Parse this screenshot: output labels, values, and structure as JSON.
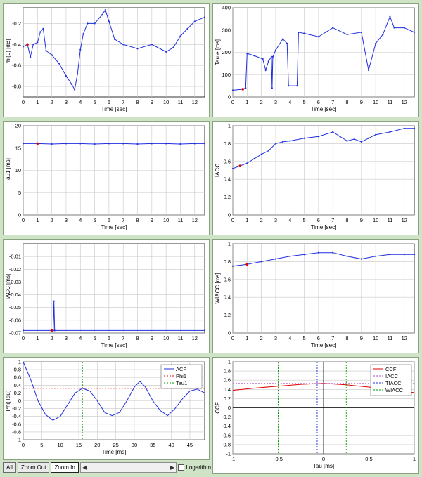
{
  "charts": [
    {
      "name": "phi0-panel",
      "chart_data": {
        "type": "line",
        "xlabel": "Time [sec]",
        "ylabel": "Phi(0) [dB]",
        "xlim": [
          0,
          12.7
        ],
        "ylim": [
          -0.9,
          -0.05
        ],
        "xticks": [
          0,
          1,
          2,
          3,
          4,
          5,
          6,
          7,
          8,
          9,
          10,
          11,
          12
        ],
        "yticks": [
          -0.8,
          -0.6,
          -0.4,
          -0.2
        ],
        "series": [
          {
            "values": [
              [
                0,
                -0.42
              ],
              [
                0.3,
                -0.4
              ],
              [
                0.5,
                -0.52
              ],
              [
                0.7,
                -0.4
              ],
              [
                1.0,
                -0.38
              ],
              [
                1.2,
                -0.28
              ],
              [
                1.4,
                -0.25
              ],
              [
                1.6,
                -0.46
              ],
              [
                2.0,
                -0.5
              ],
              [
                2.5,
                -0.58
              ],
              [
                3.0,
                -0.7
              ],
              [
                3.4,
                -0.78
              ],
              [
                3.6,
                -0.83
              ],
              [
                3.8,
                -0.68
              ],
              [
                4.0,
                -0.45
              ],
              [
                4.2,
                -0.3
              ],
              [
                4.5,
                -0.2
              ],
              [
                5.0,
                -0.2
              ],
              [
                5.5,
                -0.12
              ],
              [
                5.75,
                -0.07
              ],
              [
                6.0,
                -0.18
              ],
              [
                6.4,
                -0.35
              ],
              [
                7.0,
                -0.4
              ],
              [
                8.0,
                -0.44
              ],
              [
                9.0,
                -0.4
              ],
              [
                10.0,
                -0.47
              ],
              [
                10.5,
                -0.43
              ],
              [
                11.0,
                -0.32
              ],
              [
                11.5,
                -0.25
              ],
              [
                12.0,
                -0.18
              ],
              [
                12.7,
                -0.14
              ]
            ]
          }
        ]
      }
    },
    {
      "name": "taue-panel",
      "chart_data": {
        "type": "line",
        "xlabel": "Time [sec]",
        "ylabel": "Tau e [ms]",
        "xlim": [
          0,
          12.7
        ],
        "ylim": [
          0,
          400
        ],
        "xticks": [
          0,
          1,
          2,
          3,
          4,
          5,
          6,
          7,
          8,
          9,
          10,
          11,
          12
        ],
        "yticks": [
          0,
          100,
          200,
          300,
          400
        ],
        "series": [
          {
            "values": [
              [
                0,
                30
              ],
              [
                0.7,
                35
              ],
              [
                0.9,
                40
              ],
              [
                1.0,
                195
              ],
              [
                1.5,
                185
              ],
              [
                2.1,
                170
              ],
              [
                2.3,
                120
              ],
              [
                2.5,
                160
              ],
              [
                2.7,
                180
              ],
              [
                2.75,
                40
              ],
              [
                2.8,
                180
              ],
              [
                3.0,
                210
              ],
              [
                3.5,
                260
              ],
              [
                3.8,
                240
              ],
              [
                3.9,
                50
              ],
              [
                4.5,
                50
              ],
              [
                4.6,
                290
              ],
              [
                5.0,
                285
              ],
              [
                6.0,
                270
              ],
              [
                7.0,
                310
              ],
              [
                8.0,
                280
              ],
              [
                9.0,
                290
              ],
              [
                9.5,
                120
              ],
              [
                10.0,
                240
              ],
              [
                10.5,
                280
              ],
              [
                11.0,
                360
              ],
              [
                11.3,
                310
              ],
              [
                12.0,
                310
              ],
              [
                12.7,
                290
              ]
            ]
          }
        ]
      }
    },
    {
      "name": "tau1-panel",
      "chart_data": {
        "type": "line",
        "xlabel": "Time [sec]",
        "ylabel": "Tau1 [ms]",
        "xlim": [
          0,
          12.7
        ],
        "ylim": [
          0,
          20
        ],
        "xticks": [
          0,
          1,
          2,
          3,
          4,
          5,
          6,
          7,
          8,
          9,
          10,
          11,
          12
        ],
        "yticks": [
          0,
          5,
          10,
          15,
          20
        ],
        "series": [
          {
            "values": [
              [
                0,
                16
              ],
              [
                1.0,
                16
              ],
              [
                2.0,
                15.9
              ],
              [
                3.0,
                16
              ],
              [
                4.0,
                16
              ],
              [
                5.0,
                15.9
              ],
              [
                6.0,
                16
              ],
              [
                7.0,
                16
              ],
              [
                8.0,
                15.9
              ],
              [
                9.0,
                16
              ],
              [
                10.0,
                16
              ],
              [
                11.0,
                15.9
              ],
              [
                12.0,
                16
              ],
              [
                12.7,
                16
              ]
            ]
          }
        ]
      }
    },
    {
      "name": "iacc-panel",
      "chart_data": {
        "type": "line",
        "xlabel": "Time [sec]",
        "ylabel": "IACC",
        "xlim": [
          0,
          12.7
        ],
        "ylim": [
          0,
          1
        ],
        "xticks": [
          0,
          1,
          2,
          3,
          4,
          5,
          6,
          7,
          8,
          9,
          10,
          11,
          12
        ],
        "yticks": [
          0,
          0.2,
          0.4,
          0.6,
          0.8,
          1.0
        ],
        "series": [
          {
            "values": [
              [
                0,
                0.52
              ],
              [
                0.5,
                0.55
              ],
              [
                1.0,
                0.58
              ],
              [
                1.5,
                0.63
              ],
              [
                2.0,
                0.68
              ],
              [
                2.5,
                0.72
              ],
              [
                3.0,
                0.8
              ],
              [
                3.5,
                0.82
              ],
              [
                4.0,
                0.83
              ],
              [
                5.0,
                0.86
              ],
              [
                6.0,
                0.88
              ],
              [
                7.0,
                0.93
              ],
              [
                7.5,
                0.88
              ],
              [
                8.0,
                0.83
              ],
              [
                8.5,
                0.85
              ],
              [
                9.0,
                0.82
              ],
              [
                9.5,
                0.86
              ],
              [
                10.0,
                0.9
              ],
              [
                11.0,
                0.93
              ],
              [
                12.0,
                0.97
              ],
              [
                12.7,
                0.97
              ]
            ]
          }
        ]
      }
    },
    {
      "name": "tiacc-panel",
      "chart_data": {
        "type": "line",
        "xlabel": "Time [sec]",
        "ylabel": "TIACC [ms]",
        "xlim": [
          0,
          12.7
        ],
        "ylim": [
          -0.07,
          0
        ],
        "xticks": [
          0,
          1,
          2,
          3,
          4,
          5,
          6,
          7,
          8,
          9,
          10,
          11,
          12
        ],
        "yticks": [
          -0.07,
          -0.06,
          -0.05,
          -0.04,
          -0.03,
          -0.02,
          -0.01
        ],
        "series": [
          {
            "values": [
              [
                0,
                -0.068
              ],
              [
                2.0,
                -0.068
              ],
              [
                2.1,
                -0.068
              ],
              [
                2.15,
                -0.045
              ],
              [
                2.2,
                -0.068
              ],
              [
                12.7,
                -0.068
              ]
            ]
          }
        ]
      }
    },
    {
      "name": "wiacc-panel",
      "chart_data": {
        "type": "line",
        "xlabel": "Time [sec]",
        "ylabel": "WIACC [ms]",
        "xlim": [
          0,
          12.7
        ],
        "ylim": [
          0,
          1
        ],
        "xticks": [
          0,
          1,
          2,
          3,
          4,
          5,
          6,
          7,
          8,
          9,
          10,
          11,
          12
        ],
        "yticks": [
          0,
          0.2,
          0.4,
          0.6,
          0.8,
          1.0
        ],
        "series": [
          {
            "values": [
              [
                0,
                0.75
              ],
              [
                1.0,
                0.77
              ],
              [
                2.0,
                0.8
              ],
              [
                3.0,
                0.83
              ],
              [
                4.0,
                0.86
              ],
              [
                5.0,
                0.88
              ],
              [
                6.0,
                0.9
              ],
              [
                7.0,
                0.9
              ],
              [
                8.0,
                0.86
              ],
              [
                9.0,
                0.83
              ],
              [
                10.0,
                0.86
              ],
              [
                11.0,
                0.88
              ],
              [
                12.0,
                0.88
              ],
              [
                12.7,
                0.88
              ]
            ]
          }
        ]
      }
    },
    {
      "name": "acf-panel",
      "chart_data": {
        "type": "line",
        "xlabel": "Time [ms]",
        "ylabel": "Phi(Tau)",
        "xlim": [
          0,
          49
        ],
        "ylim": [
          -1,
          1
        ],
        "xticks": [
          0,
          5,
          10,
          15,
          20,
          25,
          30,
          35,
          40,
          45
        ],
        "yticks": [
          -1,
          -0.8,
          -0.6,
          -0.4,
          -0.2,
          0,
          0.2,
          0.4,
          0.6,
          0.8,
          1
        ],
        "legend": [
          "ACF",
          "Phi1",
          "Tau1"
        ],
        "series": [
          {
            "name": "ACF",
            "values": [
              [
                0,
                1
              ],
              [
                2,
                0.55
              ],
              [
                4,
                0
              ],
              [
                6,
                -0.35
              ],
              [
                8,
                -0.5
              ],
              [
                10,
                -0.4
              ],
              [
                12,
                -0.1
              ],
              [
                14,
                0.2
              ],
              [
                16,
                0.32
              ],
              [
                18,
                0.25
              ],
              [
                20,
                0
              ],
              [
                22,
                -0.3
              ],
              [
                24,
                -0.38
              ],
              [
                26,
                -0.3
              ],
              [
                28,
                0
              ],
              [
                30,
                0.35
              ],
              [
                31.5,
                0.5
              ],
              [
                33,
                0.35
              ],
              [
                35,
                0
              ],
              [
                37,
                -0.25
              ],
              [
                39,
                -0.38
              ],
              [
                41,
                -0.2
              ],
              [
                43,
                0.05
              ],
              [
                45,
                0.25
              ],
              [
                47,
                0.3
              ],
              [
                49,
                0.2
              ]
            ]
          },
          {
            "name": "Phi1",
            "y": 0.32
          },
          {
            "name": "Tau1",
            "x": 16
          }
        ]
      }
    },
    {
      "name": "ccf-panel",
      "chart_data": {
        "type": "line",
        "xlabel": "Tau [ms]",
        "ylabel": "CCF",
        "xlim": [
          -1,
          1
        ],
        "ylim": [
          -1,
          1
        ],
        "xticks": [
          -1,
          -0.5,
          0,
          0.5,
          1
        ],
        "yticks": [
          -1,
          -0.8,
          -0.6,
          -0.4,
          -0.2,
          0,
          0.2,
          0.4,
          0.6,
          0.8,
          1
        ],
        "legend": [
          "CCF",
          "IACC",
          "TIACC",
          "WIACC"
        ],
        "series": [
          {
            "name": "CCF",
            "values": [
              [
                -1,
                0.38
              ],
              [
                -0.75,
                0.43
              ],
              [
                -0.5,
                0.47
              ],
              [
                -0.25,
                0.51
              ],
              [
                0,
                0.53
              ],
              [
                0.25,
                0.5
              ],
              [
                0.5,
                0.45
              ],
              [
                0.75,
                0.39
              ],
              [
                1,
                0.33
              ]
            ]
          },
          {
            "name": "IACC",
            "y": 0.53
          },
          {
            "name": "TIACC",
            "x": -0.07
          },
          {
            "name": "WIACC",
            "x1": -0.5,
            "x2": 0.25
          }
        ]
      }
    }
  ],
  "toolbar": {
    "all": "All",
    "zoom_out": "Zoom Out",
    "zoom_in": "Zoom In",
    "logarithm": "Logarithm"
  }
}
